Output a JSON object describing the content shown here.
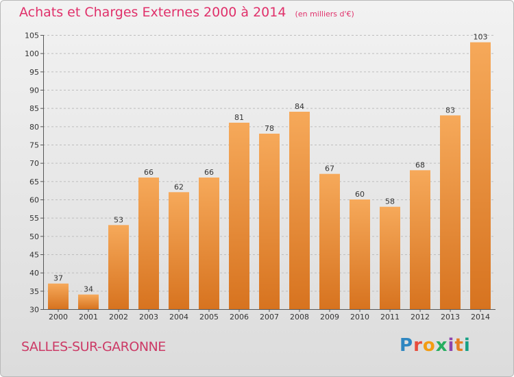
{
  "header": {
    "title": "Achats et Charges Externes 2000 à 2014",
    "unit": "(en milliers d'€)"
  },
  "footer": {
    "commune": "SALLES-SUR-GARONNE",
    "logo_text": "Proxiti"
  },
  "colors": {
    "bar_top": "#f6a95a",
    "bar_bottom": "#d7731f",
    "title": "#e0306a",
    "grid": "#bdbdbd",
    "logo": [
      "#2e86c1",
      "#e74c3c",
      "#f39c12",
      "#27ae60",
      "#8e44ad",
      "#e67e22",
      "#16a085"
    ]
  },
  "chart_data": {
    "type": "bar",
    "title": "Achats et Charges Externes 2000 à 2014",
    "categories": [
      "2000",
      "2001",
      "2002",
      "2003",
      "2004",
      "2005",
      "2006",
      "2007",
      "2008",
      "2009",
      "2010",
      "2011",
      "2012",
      "2013",
      "2014"
    ],
    "values": [
      37,
      34,
      53,
      66,
      62,
      66,
      81,
      78,
      84,
      67,
      60,
      58,
      68,
      83,
      103
    ],
    "ylim": [
      30,
      105
    ],
    "yticks": [
      30,
      35,
      40,
      45,
      50,
      55,
      60,
      65,
      70,
      75,
      80,
      85,
      90,
      95,
      100,
      105
    ],
    "grid": true,
    "data_labels": true
  }
}
